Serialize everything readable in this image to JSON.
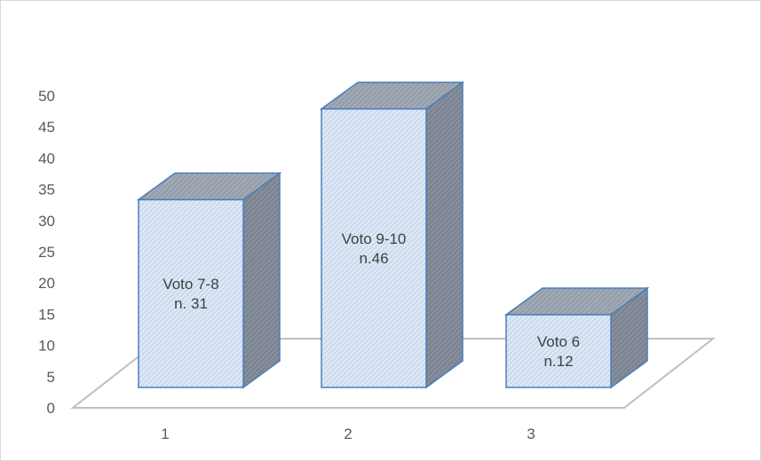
{
  "chart_data": {
    "type": "bar",
    "style": "3d-column",
    "categories": [
      "1",
      "2",
      "3"
    ],
    "values": [
      31,
      46,
      12
    ],
    "data_labels": [
      [
        "Voto 7-8",
        "n. 31"
      ],
      [
        "Voto 9-10",
        "n.46"
      ],
      [
        "Voto 6",
        "n.12"
      ]
    ],
    "y_ticks": [
      "0",
      "5",
      "10",
      "15",
      "20",
      "25",
      "30",
      "35",
      "40",
      "45",
      "50"
    ],
    "ylim": [
      0,
      50
    ],
    "grid": false,
    "legend": "none",
    "colors": {
      "bar_front": "#dce6f4",
      "bar_top": "#9aa3af",
      "bar_side": "#7f8894",
      "bar_edge": "#4a7ebb",
      "floor": "#bfbfbf",
      "tick_text": "#595959"
    }
  }
}
